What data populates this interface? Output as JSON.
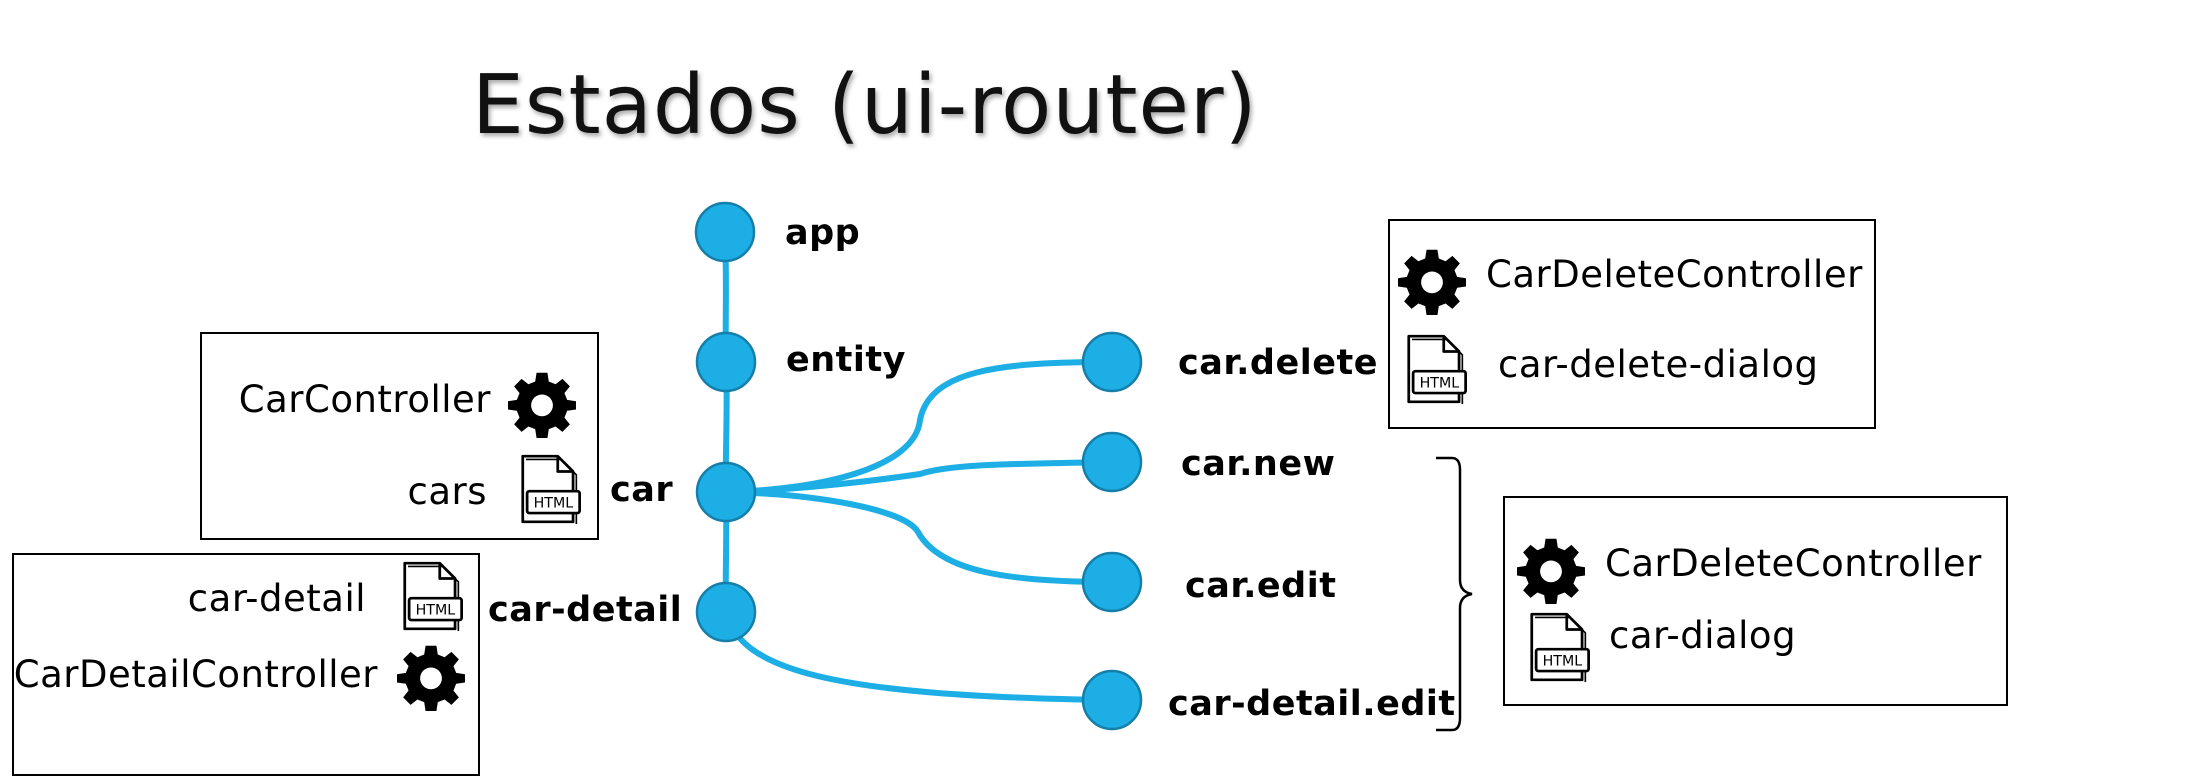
{
  "title": "Estados (ui-router)",
  "colors": {
    "node_fill": "#1CAEE4",
    "node_stroke": "#157FAA",
    "edge": "#1CAEE4",
    "text": "#000000"
  },
  "states": {
    "app": "app",
    "entity": "entity",
    "car": "car",
    "car_detail": "car-detail",
    "car_delete": "car.delete",
    "car_new": "car.new",
    "car_edit": "car.edit",
    "car_detail_edit": "car-detail.edit"
  },
  "boxes": {
    "car": {
      "controller": "CarController",
      "template": "cars"
    },
    "car_detail": {
      "template": "car-detail",
      "controller": "CarDetailController"
    },
    "car_delete": {
      "controller": "CarDeleteController",
      "template": "car-delete-dialog"
    },
    "car_dialog": {
      "controller": "CarDeleteController",
      "template": "car-dialog"
    }
  },
  "icons": {
    "gear": "gear-icon",
    "html_file": "html-file-icon",
    "html_badge": "HTML"
  }
}
